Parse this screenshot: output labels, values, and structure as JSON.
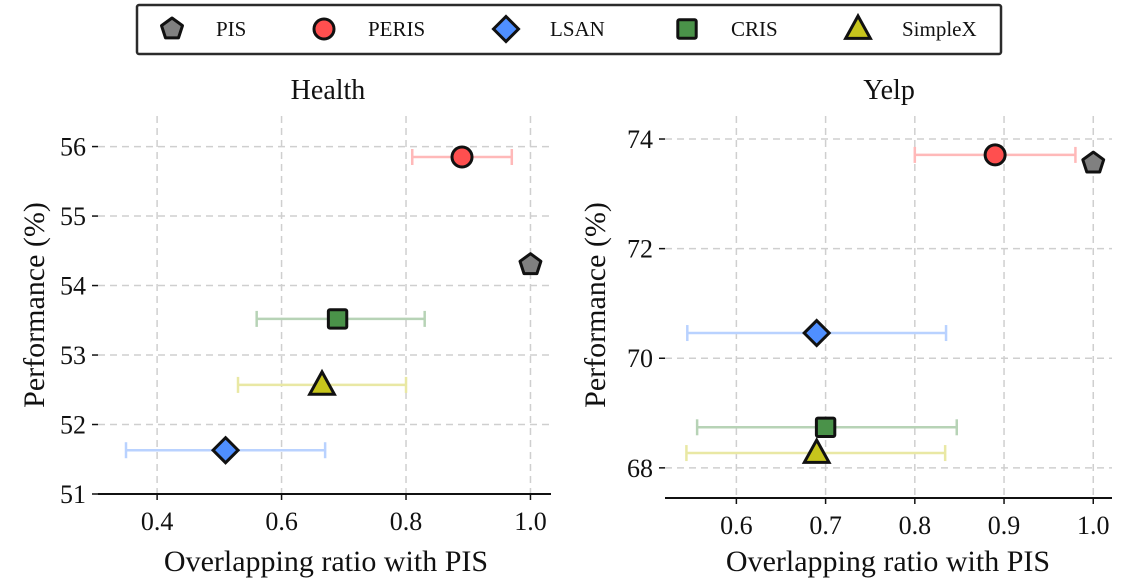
{
  "legend": {
    "position": "top-center",
    "entries": [
      {
        "name": "PIS",
        "marker": "pentagon",
        "color": "#808080"
      },
      {
        "name": "PERIS",
        "marker": "circle",
        "color": "#ff4f4f"
      },
      {
        "name": "LSAN",
        "marker": "diamond",
        "color": "#4f8fff"
      },
      {
        "name": "CRIS",
        "marker": "square",
        "color": "#4a9249"
      },
      {
        "name": "SimpleX",
        "marker": "triangle",
        "color": "#c7c51c"
      }
    ]
  },
  "chart_data": [
    {
      "type": "scatter",
      "title": "Health",
      "xlabel": "Overlapping ratio with PIS",
      "ylabel": "Performance (%)",
      "xlim": [
        0.305,
        1.033
      ],
      "ylim": [
        51,
        56.44
      ],
      "xticks": [
        0.4,
        0.6,
        0.8,
        1.0
      ],
      "xtick_labels": [
        "0.4",
        "0.6",
        "0.8",
        "1.0"
      ],
      "yticks": [
        51,
        52,
        53,
        54,
        55,
        56
      ],
      "ytick_labels": [
        "51",
        "52",
        "53",
        "54",
        "55",
        "56"
      ],
      "grid": true,
      "series": [
        {
          "name": "PERIS",
          "x": 0.89,
          "y": 55.85,
          "xerr_low": 0.81,
          "xerr_high": 0.97
        },
        {
          "name": "PIS",
          "x": 1.0,
          "y": 54.3,
          "xerr_low": null,
          "xerr_high": null
        },
        {
          "name": "CRIS",
          "x": 0.69,
          "y": 53.52,
          "xerr_low": 0.56,
          "xerr_high": 0.83
        },
        {
          "name": "SimpleX",
          "x": 0.665,
          "y": 52.57,
          "xerr_low": 0.53,
          "xerr_high": 0.8
        },
        {
          "name": "LSAN",
          "x": 0.51,
          "y": 51.63,
          "xerr_low": 0.35,
          "xerr_high": 0.67
        }
      ]
    },
    {
      "type": "scatter",
      "title": "Yelp",
      "xlabel": "Overlapping ratio with PIS",
      "ylabel": "Performance (%)",
      "xlim": [
        0.52,
        1.021
      ],
      "ylim": [
        67.45,
        74.42
      ],
      "xticks": [
        0.6,
        0.7,
        0.8,
        0.9,
        1.0
      ],
      "xtick_labels": [
        "0.6",
        "0.7",
        "0.8",
        "0.9",
        "1.0"
      ],
      "yticks": [
        68,
        70,
        72,
        74
      ],
      "ytick_labels": [
        "68",
        "70",
        "72",
        "74"
      ],
      "grid": true,
      "series": [
        {
          "name": "PERIS",
          "x": 0.89,
          "y": 73.71,
          "xerr_low": 0.8,
          "xerr_high": 0.98
        },
        {
          "name": "PIS",
          "x": 1.0,
          "y": 73.56,
          "xerr_low": null,
          "xerr_high": null
        },
        {
          "name": "LSAN",
          "x": 0.69,
          "y": 70.46,
          "xerr_low": 0.545,
          "xerr_high": 0.835
        },
        {
          "name": "CRIS",
          "x": 0.7,
          "y": 68.74,
          "xerr_low": 0.556,
          "xerr_high": 0.847
        },
        {
          "name": "SimpleX",
          "x": 0.69,
          "y": 68.27,
          "xerr_low": 0.544,
          "xerr_high": 0.834
        }
      ]
    }
  ]
}
